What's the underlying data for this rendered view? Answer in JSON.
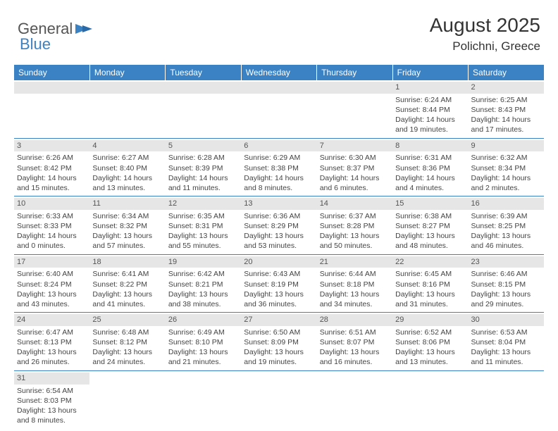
{
  "logo": {
    "text1": "General",
    "text2": "Blue"
  },
  "title": "August 2025",
  "location": "Polichni, Greece",
  "colors": {
    "header_bg": "#3b82c4",
    "header_fg": "#ffffff",
    "daynum_bg": "#e6e6e6",
    "row_divider": "#3b82c4"
  },
  "day_headers": [
    "Sunday",
    "Monday",
    "Tuesday",
    "Wednesday",
    "Thursday",
    "Friday",
    "Saturday"
  ],
  "weeks": [
    [
      {
        "n": "",
        "lines": []
      },
      {
        "n": "",
        "lines": []
      },
      {
        "n": "",
        "lines": []
      },
      {
        "n": "",
        "lines": []
      },
      {
        "n": "",
        "lines": []
      },
      {
        "n": "1",
        "lines": [
          "Sunrise: 6:24 AM",
          "Sunset: 8:44 PM",
          "Daylight: 14 hours and 19 minutes."
        ]
      },
      {
        "n": "2",
        "lines": [
          "Sunrise: 6:25 AM",
          "Sunset: 8:43 PM",
          "Daylight: 14 hours and 17 minutes."
        ]
      }
    ],
    [
      {
        "n": "3",
        "lines": [
          "Sunrise: 6:26 AM",
          "Sunset: 8:42 PM",
          "Daylight: 14 hours and 15 minutes."
        ]
      },
      {
        "n": "4",
        "lines": [
          "Sunrise: 6:27 AM",
          "Sunset: 8:40 PM",
          "Daylight: 14 hours and 13 minutes."
        ]
      },
      {
        "n": "5",
        "lines": [
          "Sunrise: 6:28 AM",
          "Sunset: 8:39 PM",
          "Daylight: 14 hours and 11 minutes."
        ]
      },
      {
        "n": "6",
        "lines": [
          "Sunrise: 6:29 AM",
          "Sunset: 8:38 PM",
          "Daylight: 14 hours and 8 minutes."
        ]
      },
      {
        "n": "7",
        "lines": [
          "Sunrise: 6:30 AM",
          "Sunset: 8:37 PM",
          "Daylight: 14 hours and 6 minutes."
        ]
      },
      {
        "n": "8",
        "lines": [
          "Sunrise: 6:31 AM",
          "Sunset: 8:36 PM",
          "Daylight: 14 hours and 4 minutes."
        ]
      },
      {
        "n": "9",
        "lines": [
          "Sunrise: 6:32 AM",
          "Sunset: 8:34 PM",
          "Daylight: 14 hours and 2 minutes."
        ]
      }
    ],
    [
      {
        "n": "10",
        "lines": [
          "Sunrise: 6:33 AM",
          "Sunset: 8:33 PM",
          "Daylight: 14 hours and 0 minutes."
        ]
      },
      {
        "n": "11",
        "lines": [
          "Sunrise: 6:34 AM",
          "Sunset: 8:32 PM",
          "Daylight: 13 hours and 57 minutes."
        ]
      },
      {
        "n": "12",
        "lines": [
          "Sunrise: 6:35 AM",
          "Sunset: 8:31 PM",
          "Daylight: 13 hours and 55 minutes."
        ]
      },
      {
        "n": "13",
        "lines": [
          "Sunrise: 6:36 AM",
          "Sunset: 8:29 PM",
          "Daylight: 13 hours and 53 minutes."
        ]
      },
      {
        "n": "14",
        "lines": [
          "Sunrise: 6:37 AM",
          "Sunset: 8:28 PM",
          "Daylight: 13 hours and 50 minutes."
        ]
      },
      {
        "n": "15",
        "lines": [
          "Sunrise: 6:38 AM",
          "Sunset: 8:27 PM",
          "Daylight: 13 hours and 48 minutes."
        ]
      },
      {
        "n": "16",
        "lines": [
          "Sunrise: 6:39 AM",
          "Sunset: 8:25 PM",
          "Daylight: 13 hours and 46 minutes."
        ]
      }
    ],
    [
      {
        "n": "17",
        "lines": [
          "Sunrise: 6:40 AM",
          "Sunset: 8:24 PM",
          "Daylight: 13 hours and 43 minutes."
        ]
      },
      {
        "n": "18",
        "lines": [
          "Sunrise: 6:41 AM",
          "Sunset: 8:22 PM",
          "Daylight: 13 hours and 41 minutes."
        ]
      },
      {
        "n": "19",
        "lines": [
          "Sunrise: 6:42 AM",
          "Sunset: 8:21 PM",
          "Daylight: 13 hours and 38 minutes."
        ]
      },
      {
        "n": "20",
        "lines": [
          "Sunrise: 6:43 AM",
          "Sunset: 8:19 PM",
          "Daylight: 13 hours and 36 minutes."
        ]
      },
      {
        "n": "21",
        "lines": [
          "Sunrise: 6:44 AM",
          "Sunset: 8:18 PM",
          "Daylight: 13 hours and 34 minutes."
        ]
      },
      {
        "n": "22",
        "lines": [
          "Sunrise: 6:45 AM",
          "Sunset: 8:16 PM",
          "Daylight: 13 hours and 31 minutes."
        ]
      },
      {
        "n": "23",
        "lines": [
          "Sunrise: 6:46 AM",
          "Sunset: 8:15 PM",
          "Daylight: 13 hours and 29 minutes."
        ]
      }
    ],
    [
      {
        "n": "24",
        "lines": [
          "Sunrise: 6:47 AM",
          "Sunset: 8:13 PM",
          "Daylight: 13 hours and 26 minutes."
        ]
      },
      {
        "n": "25",
        "lines": [
          "Sunrise: 6:48 AM",
          "Sunset: 8:12 PM",
          "Daylight: 13 hours and 24 minutes."
        ]
      },
      {
        "n": "26",
        "lines": [
          "Sunrise: 6:49 AM",
          "Sunset: 8:10 PM",
          "Daylight: 13 hours and 21 minutes."
        ]
      },
      {
        "n": "27",
        "lines": [
          "Sunrise: 6:50 AM",
          "Sunset: 8:09 PM",
          "Daylight: 13 hours and 19 minutes."
        ]
      },
      {
        "n": "28",
        "lines": [
          "Sunrise: 6:51 AM",
          "Sunset: 8:07 PM",
          "Daylight: 13 hours and 16 minutes."
        ]
      },
      {
        "n": "29",
        "lines": [
          "Sunrise: 6:52 AM",
          "Sunset: 8:06 PM",
          "Daylight: 13 hours and 13 minutes."
        ]
      },
      {
        "n": "30",
        "lines": [
          "Sunrise: 6:53 AM",
          "Sunset: 8:04 PM",
          "Daylight: 13 hours and 11 minutes."
        ]
      }
    ],
    [
      {
        "n": "31",
        "lines": [
          "Sunrise: 6:54 AM",
          "Sunset: 8:03 PM",
          "Daylight: 13 hours and 8 minutes."
        ]
      },
      {
        "n": "",
        "lines": []
      },
      {
        "n": "",
        "lines": []
      },
      {
        "n": "",
        "lines": []
      },
      {
        "n": "",
        "lines": []
      },
      {
        "n": "",
        "lines": []
      },
      {
        "n": "",
        "lines": []
      }
    ]
  ]
}
